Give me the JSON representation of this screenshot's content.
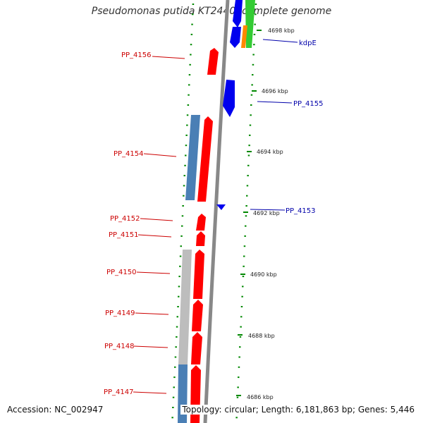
{
  "title": "Pseudomonas putida KT2440, complete genome",
  "footer": {
    "accession": "Accession: NC_002947",
    "topology": "Topology: circular; Length: 6,181,863 bp; Genes: 5,446"
  },
  "colors": {
    "forward_gene": "#ff0000",
    "reverse_gene": "#0000ee",
    "backbone": "#888888",
    "tick": "#008800",
    "steel": "#4a7fb5",
    "grey_feature": "#c0c0c0",
    "green_feature": "#33cc33",
    "orange_feature": "#ff8800"
  },
  "ruler": {
    "labels": [
      "4698 kbp",
      "4696 kbp",
      "4694 kbp",
      "4692 kbp",
      "4690 kbp",
      "4688 kbp",
      "4686 kbp"
    ]
  },
  "genes": [
    {
      "name": "PP_4156",
      "strand": "+"
    },
    {
      "name": "kdpE",
      "strand": "-"
    },
    {
      "name": "PP_4155",
      "strand": "-"
    },
    {
      "name": "PP_4154",
      "strand": "+"
    },
    {
      "name": "PP_4153",
      "strand": "-"
    },
    {
      "name": "PP_4152",
      "strand": "+"
    },
    {
      "name": "PP_4151",
      "strand": "+"
    },
    {
      "name": "PP_4150",
      "strand": "+"
    },
    {
      "name": "PP_4149",
      "strand": "+"
    },
    {
      "name": "PP_4148",
      "strand": "+"
    },
    {
      "name": "PP_4147",
      "strand": "+"
    }
  ]
}
